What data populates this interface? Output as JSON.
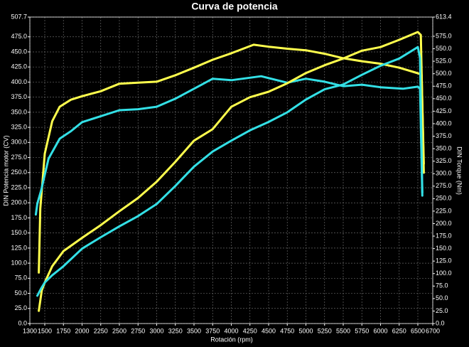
{
  "chart_data": {
    "type": "line",
    "title": "Curva de potencia",
    "xlabel": "Rotación (rpm)",
    "ylabel": "DIN Potencia motor (CV)",
    "y2label": "DIN Torque (Nm)",
    "xlim": [
      1300,
      6700
    ],
    "xticks": [
      1300,
      1500,
      1750,
      2000,
      2250,
      2500,
      2750,
      3000,
      3250,
      3500,
      3750,
      4000,
      4250,
      4500,
      4750,
      5000,
      5250,
      5500,
      5750,
      6000,
      6250,
      6500,
      6700
    ],
    "ylim": [
      0,
      507.7
    ],
    "yticks": [
      {
        "value": 0,
        "label": "0.0"
      },
      {
        "value": 25,
        "label": "25.0"
      },
      {
        "value": 50,
        "label": "50.0"
      },
      {
        "value": 75,
        "label": "75.0"
      },
      {
        "value": 100,
        "label": "100.0"
      },
      {
        "value": 125,
        "label": "125.0"
      },
      {
        "value": 150,
        "label": "150.0"
      },
      {
        "value": 175,
        "label": "175.0"
      },
      {
        "value": 200,
        "label": "200.0"
      },
      {
        "value": 225,
        "label": "225.0"
      },
      {
        "value": 250,
        "label": "250.0"
      },
      {
        "value": 275,
        "label": "275.0"
      },
      {
        "value": 300,
        "label": "300.0"
      },
      {
        "value": 325,
        "label": "325.0"
      },
      {
        "value": 350,
        "label": "350.0"
      },
      {
        "value": 375,
        "label": "375.0"
      },
      {
        "value": 400,
        "label": "400.0"
      },
      {
        "value": 425,
        "label": "425.0"
      },
      {
        "value": 450,
        "label": "450.0"
      },
      {
        "value": 475,
        "label": "475.0"
      },
      507.7
    ],
    "y2lim": [
      0,
      613.4
    ],
    "y2ticks": [
      {
        "value": 0,
        "label": "0.0"
      },
      {
        "value": 25,
        "label": "25.0"
      },
      {
        "value": 50,
        "label": "50.0"
      },
      {
        "value": 75,
        "label": "75.0"
      },
      {
        "value": 100,
        "label": "100.0"
      },
      {
        "value": 125,
        "label": "125.0"
      },
      {
        "value": 150,
        "label": "150.0"
      },
      {
        "value": 175,
        "label": "175.0"
      },
      {
        "value": 200,
        "label": "200.0"
      },
      {
        "value": 225,
        "label": "225.0"
      },
      {
        "value": 250,
        "label": "250.0"
      },
      {
        "value": 275,
        "label": "275.0"
      },
      {
        "value": 300,
        "label": "300.0"
      },
      {
        "value": 325,
        "label": "325.0"
      },
      {
        "value": 350,
        "label": "350.0"
      },
      {
        "value": 375,
        "label": "375.0"
      },
      {
        "value": 400,
        "label": "400.0"
      },
      {
        "value": 425,
        "label": "425.0"
      },
      {
        "value": 450,
        "label": "450.0"
      },
      {
        "value": 475,
        "label": "475.0"
      },
      {
        "value": 500,
        "label": "500.0"
      },
      {
        "value": 525,
        "label": "525.0"
      },
      {
        "value": 550,
        "label": "550.0"
      },
      {
        "value": 575,
        "label": "575.0"
      },
      613.4
    ],
    "grid": true,
    "series": [
      {
        "color": "#ffff4d",
        "axis": "y2",
        "x": [
          1420,
          1440,
          1500,
          1600,
          1700,
          1850,
          2000,
          2250,
          2500,
          2750,
          3000,
          3250,
          3500,
          3750,
          4000,
          4300,
          4500,
          4750,
          5000,
          5250,
          5500,
          5750,
          6000,
          6250,
          6500,
          6550,
          6580
        ],
        "values": [
          102,
          230,
          340,
          405,
          434,
          448,
          455,
          465,
          480,
          482,
          484,
          497,
          512,
          528,
          541,
          558,
          554,
          550,
          547,
          540,
          531,
          525,
          520,
          512,
          501,
          498,
          320
        ]
      },
      {
        "color": "#33e0e6",
        "axis": "y2",
        "x": [
          1380,
          1400,
          1450,
          1550,
          1700,
          1850,
          2000,
          2250,
          2500,
          2750,
          3000,
          3250,
          3500,
          3750,
          4000,
          4400,
          4750,
          5000,
          5250,
          5500,
          5750,
          6000,
          6300,
          6500,
          6530,
          6560
        ],
        "values": [
          218,
          240,
          266,
          330,
          370,
          385,
          403,
          415,
          427,
          429,
          434,
          450,
          470,
          490,
          487,
          495,
          482,
          490,
          484,
          475,
          478,
          473,
          470,
          474,
          470,
          256
        ]
      },
      {
        "color": "#ffff4d",
        "x": [
          1420,
          1460,
          1500,
          1600,
          1750,
          2000,
          2250,
          2500,
          2750,
          3000,
          3250,
          3500,
          3750,
          4000,
          4250,
          4500,
          4750,
          5000,
          5250,
          5500,
          5750,
          6000,
          6250,
          6500,
          6540,
          6580
        ],
        "values": [
          21,
          55,
          68,
          95,
          120,
          142,
          163,
          186,
          208,
          235,
          268,
          303,
          322,
          359,
          375,
          384,
          398,
          415,
          428,
          439,
          452,
          458,
          470,
          483,
          478,
          250
        ]
      },
      {
        "color": "#33e0e6",
        "x": [
          1400,
          1450,
          1500,
          1600,
          1750,
          2000,
          2250,
          2500,
          2750,
          3000,
          3250,
          3500,
          3750,
          4000,
          4250,
          4500,
          4750,
          5000,
          5250,
          5500,
          5750,
          6000,
          6250,
          6500,
          6530,
          6560
        ],
        "values": [
          46,
          58,
          68,
          80,
          95,
          124,
          143,
          161,
          178,
          198,
          228,
          260,
          285,
          303,
          320,
          334,
          350,
          371,
          388,
          396,
          412,
          427,
          439,
          458,
          440,
          217
        ]
      }
    ]
  }
}
